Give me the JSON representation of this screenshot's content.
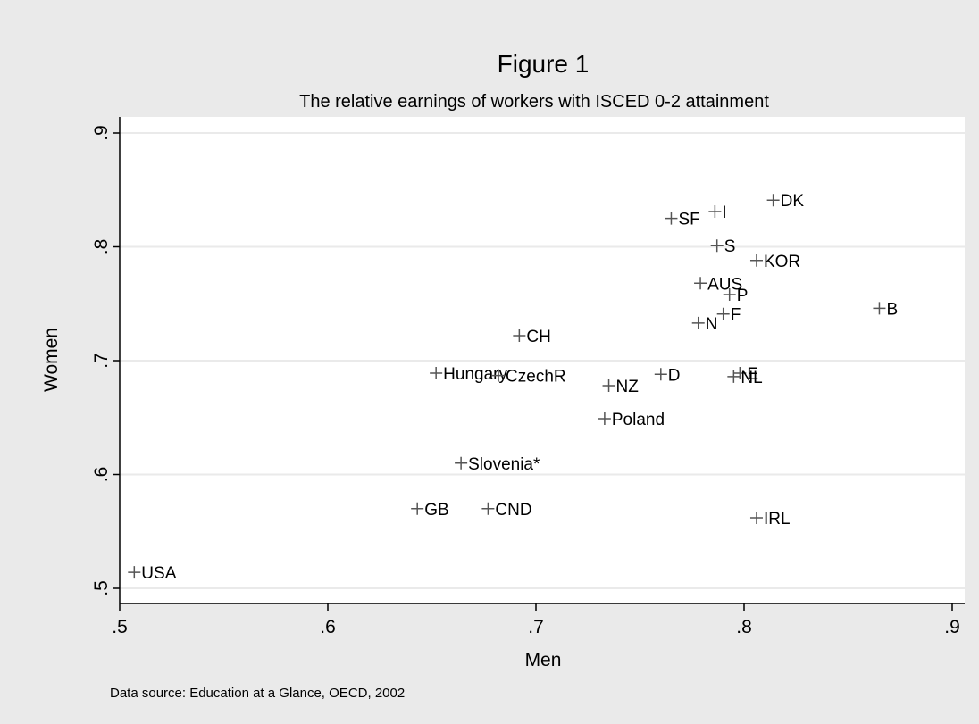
{
  "title": "Figure 1",
  "subtitle": "The relative earnings of workers with ISCED 0-2 attainment",
  "note": "Data source: Education at a Glance, OECD, 2002",
  "colors": {
    "outer_bg": "#eaeaea",
    "plot_bg": "#ffffff",
    "grid": "#eaeaea",
    "marker": "#555555",
    "text": "#000000"
  },
  "chart_data": {
    "type": "scatter",
    "xlabel": "Men",
    "ylabel": "Women",
    "xlim": [
      0.5,
      0.9
    ],
    "ylim": [
      0.5,
      0.9
    ],
    "xticks": [
      0.5,
      0.6,
      0.7,
      0.8,
      0.9
    ],
    "yticks": [
      0.5,
      0.6,
      0.7,
      0.8,
      0.9
    ],
    "xtick_labels": [
      ".5",
      ".6",
      ".7",
      ".8",
      ".9"
    ],
    "ytick_labels": [
      ".5",
      ".6",
      ".7",
      ".8",
      ".9"
    ],
    "grid": true,
    "points": [
      {
        "label": "USA",
        "x": 0.507,
        "y": 0.514
      },
      {
        "label": "GB",
        "x": 0.643,
        "y": 0.57
      },
      {
        "label": "CND",
        "x": 0.677,
        "y": 0.57
      },
      {
        "label": "Slovenia*",
        "x": 0.664,
        "y": 0.61
      },
      {
        "label": "Hungary",
        "x": 0.652,
        "y": 0.689
      },
      {
        "label": "CzechR",
        "x": 0.682,
        "y": 0.687
      },
      {
        "label": "CH",
        "x": 0.692,
        "y": 0.722
      },
      {
        "label": "NZ",
        "x": 0.735,
        "y": 0.678
      },
      {
        "label": "Poland",
        "x": 0.733,
        "y": 0.649
      },
      {
        "label": "D",
        "x": 0.76,
        "y": 0.688
      },
      {
        "label": "SF",
        "x": 0.765,
        "y": 0.825
      },
      {
        "label": "I",
        "x": 0.786,
        "y": 0.831
      },
      {
        "label": "DK",
        "x": 0.814,
        "y": 0.841
      },
      {
        "label": "S",
        "x": 0.787,
        "y": 0.801
      },
      {
        "label": "KOR",
        "x": 0.806,
        "y": 0.788
      },
      {
        "label": "AUS",
        "x": 0.779,
        "y": 0.768
      },
      {
        "label": "P",
        "x": 0.793,
        "y": 0.758
      },
      {
        "label": "F",
        "x": 0.79,
        "y": 0.741
      },
      {
        "label": "N",
        "x": 0.778,
        "y": 0.733
      },
      {
        "label": "B",
        "x": 0.865,
        "y": 0.746
      },
      {
        "label": "E",
        "x": 0.798,
        "y": 0.689
      },
      {
        "label": "NL",
        "x": 0.795,
        "y": 0.686
      },
      {
        "label": "IRL",
        "x": 0.806,
        "y": 0.562
      }
    ]
  }
}
